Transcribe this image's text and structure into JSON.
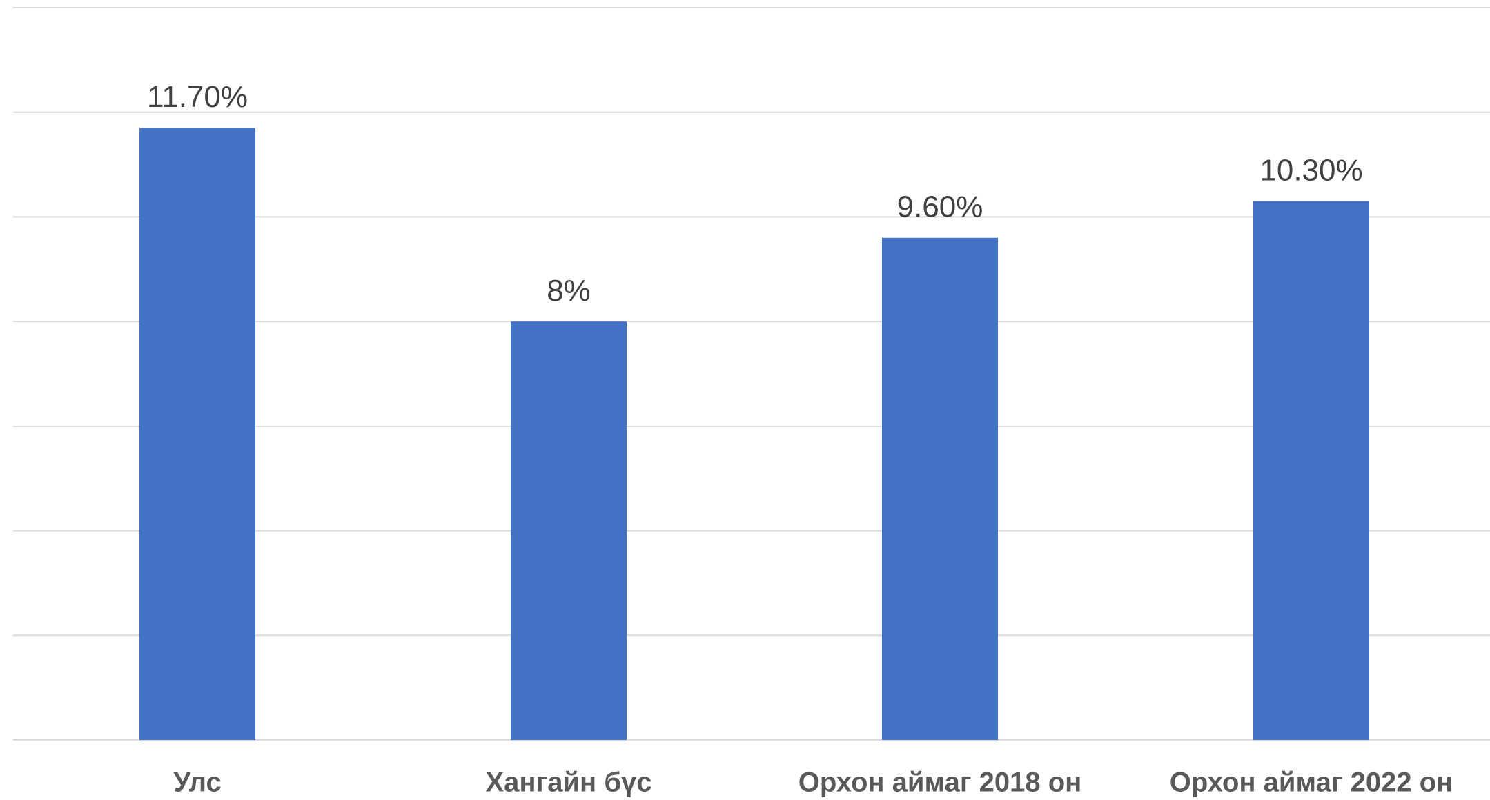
{
  "chart_data": {
    "type": "bar",
    "categories": [
      "Улс",
      "Хангайн бүс",
      "Орхон аймаг 2018 он",
      "Орхон аймаг 2022 он"
    ],
    "values": [
      11.7,
      8,
      9.6,
      10.3
    ],
    "value_labels": [
      "11.70%",
      "8%",
      "9.60%",
      "10.30%"
    ],
    "color": "#4472c4",
    "ylim": [
      0,
      14
    ],
    "yticks": [
      0,
      2,
      4,
      6,
      8,
      10,
      12,
      14
    ],
    "grid": true
  }
}
